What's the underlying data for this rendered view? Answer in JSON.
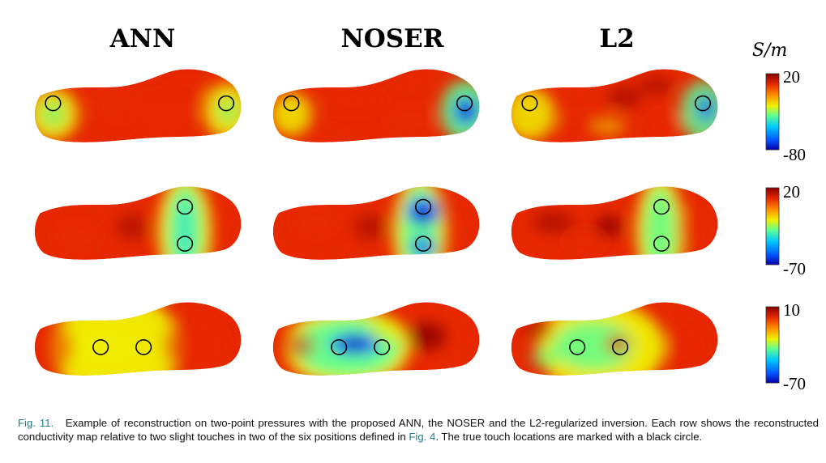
{
  "figure": {
    "column_titles": [
      "ANN",
      "NOSER",
      "L2"
    ],
    "unit_label": "S/m",
    "rows": [
      {
        "colorbar": {
          "max_label": "20",
          "min_label": "-80"
        },
        "panels": [
          {
            "method": "ANN",
            "touch_markers": 2
          },
          {
            "method": "NOSER",
            "touch_markers": 2
          },
          {
            "method": "L2",
            "touch_markers": 2
          }
        ]
      },
      {
        "colorbar": {
          "max_label": "20",
          "min_label": "-70"
        },
        "panels": [
          {
            "method": "ANN",
            "touch_markers": 2
          },
          {
            "method": "NOSER",
            "touch_markers": 2
          },
          {
            "method": "L2",
            "touch_markers": 2
          }
        ]
      },
      {
        "colorbar": {
          "max_label": "10",
          "min_label": "-70"
        },
        "panels": [
          {
            "method": "ANN",
            "touch_markers": 2
          },
          {
            "method": "NOSER",
            "touch_markers": 2
          },
          {
            "method": "L2",
            "touch_markers": 2
          }
        ]
      }
    ],
    "colormap": [
      "#0a00a8",
      "#0060ff",
      "#00d0ff",
      "#60ff90",
      "#f0f000",
      "#ff8c00",
      "#e82800",
      "#8c0000"
    ],
    "marker_color": "#000000"
  },
  "caption": {
    "label": "Fig. 11.",
    "text_before_ref": "Example of reconstruction on two-point pressures with the proposed ANN, the NOSER and the L2-regularized inversion. Each row shows the reconstructed conductivity map relative to two slight touches in two of the six positions defined in",
    "ref": "Fig. 4",
    "text_after_ref": ". The true touch locations are marked with a black circle."
  }
}
